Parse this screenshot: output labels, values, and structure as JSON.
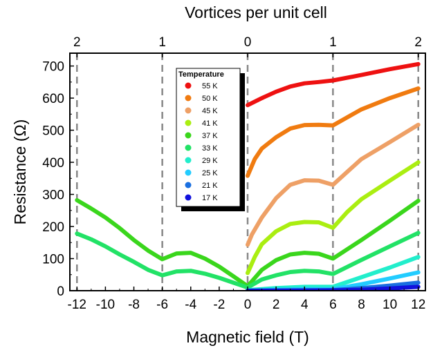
{
  "chart_data": {
    "type": "line",
    "xlabel": "Magnetic field (T)",
    "ylabel": "Resistance (Ω)",
    "top_xlabel": "Vortices per unit cell",
    "xlim": [
      -12.5,
      12.5
    ],
    "ylim": [
      0,
      740
    ],
    "xticks": [
      -12,
      -10,
      -8,
      -6,
      -4,
      -2,
      0,
      2,
      4,
      6,
      8,
      10,
      12
    ],
    "xtick_labels": [
      "-12",
      "-10",
      "-8",
      "-6",
      "-4",
      "-2",
      "0",
      "2",
      "4",
      "6",
      "8",
      "10",
      "12"
    ],
    "yticks": [
      0,
      100,
      200,
      300,
      400,
      500,
      600,
      700
    ],
    "ytick_labels": [
      "0",
      "100",
      "200",
      "300",
      "400",
      "500",
      "600",
      "700"
    ],
    "top_ticks": [
      {
        "field": -12,
        "label": "2"
      },
      {
        "field": -6,
        "label": "1"
      },
      {
        "field": 0,
        "label": "0"
      },
      {
        "field": 6,
        "label": "1"
      },
      {
        "field": 12,
        "label": "2"
      }
    ],
    "vlines": [
      -12,
      -6,
      0,
      6,
      12
    ],
    "legend": {
      "title": "Temperature",
      "placement": "top-center"
    },
    "series": [
      {
        "name": "55 K",
        "color": "#ee1111",
        "points": [
          [
            0,
            578
          ],
          [
            1,
            600
          ],
          [
            2,
            620
          ],
          [
            3,
            636
          ],
          [
            4,
            646
          ],
          [
            5,
            650
          ],
          [
            6,
            655
          ],
          [
            8,
            672
          ],
          [
            10,
            690
          ],
          [
            12,
            706
          ]
        ]
      },
      {
        "name": "50 K",
        "color": "#f07b10",
        "points": [
          [
            0,
            358
          ],
          [
            0.5,
            410
          ],
          [
            1,
            443
          ],
          [
            2,
            478
          ],
          [
            3,
            505
          ],
          [
            4,
            516
          ],
          [
            5,
            517
          ],
          [
            6,
            515
          ],
          [
            7,
            540
          ],
          [
            8,
            565
          ],
          [
            10,
            600
          ],
          [
            12,
            630
          ]
        ]
      },
      {
        "name": "45 K",
        "color": "#eea066",
        "points": [
          [
            0,
            143
          ],
          [
            0.3,
            175
          ],
          [
            1,
            228
          ],
          [
            2,
            288
          ],
          [
            3,
            330
          ],
          [
            4,
            344
          ],
          [
            5,
            343
          ],
          [
            6,
            330
          ],
          [
            7,
            370
          ],
          [
            8,
            410
          ],
          [
            10,
            463
          ],
          [
            12,
            517
          ]
        ]
      },
      {
        "name": "41 K",
        "color": "#aaee11",
        "points": [
          [
            0,
            55
          ],
          [
            0.5,
            105
          ],
          [
            1,
            145
          ],
          [
            2,
            185
          ],
          [
            3,
            208
          ],
          [
            4,
            214
          ],
          [
            5,
            213
          ],
          [
            6,
            196
          ],
          [
            7,
            245
          ],
          [
            8,
            285
          ],
          [
            10,
            343
          ],
          [
            12,
            400
          ]
        ]
      },
      {
        "name": "37 K",
        "color": "#3ad61c",
        "points": [
          [
            -12,
            282
          ],
          [
            -11,
            256
          ],
          [
            -10,
            228
          ],
          [
            -9,
            195
          ],
          [
            -8,
            158
          ],
          [
            -7,
            125
          ],
          [
            -6,
            98
          ],
          [
            -5,
            116
          ],
          [
            -4,
            118
          ],
          [
            -3,
            100
          ],
          [
            -2,
            75
          ],
          [
            -1,
            45
          ],
          [
            0,
            14
          ],
          [
            1,
            65
          ],
          [
            2,
            95
          ],
          [
            3,
            113
          ],
          [
            4,
            118
          ],
          [
            5,
            115
          ],
          [
            6,
            100
          ],
          [
            8,
            158
          ],
          [
            10,
            218
          ],
          [
            12,
            280
          ]
        ]
      },
      {
        "name": "33 K",
        "color": "#22e266",
        "points": [
          [
            -12,
            178
          ],
          [
            -11,
            160
          ],
          [
            -10,
            138
          ],
          [
            -9,
            113
          ],
          [
            -8,
            90
          ],
          [
            -7,
            65
          ],
          [
            -6,
            48
          ],
          [
            -5,
            60
          ],
          [
            -4,
            62
          ],
          [
            -3,
            53
          ],
          [
            -2,
            40
          ],
          [
            -1,
            25
          ],
          [
            0,
            10
          ],
          [
            1,
            35
          ],
          [
            2,
            48
          ],
          [
            3,
            58
          ],
          [
            4,
            62
          ],
          [
            5,
            60
          ],
          [
            6,
            52
          ],
          [
            8,
            96
          ],
          [
            10,
            138
          ],
          [
            12,
            180
          ]
        ]
      },
      {
        "name": "29 K",
        "color": "#22eecc",
        "points": [
          [
            0,
            2
          ],
          [
            2,
            8
          ],
          [
            4,
            12
          ],
          [
            6,
            12
          ],
          [
            8,
            42
          ],
          [
            10,
            72
          ],
          [
            12,
            105
          ]
        ]
      },
      {
        "name": "25 K",
        "color": "#22ccff",
        "points": [
          [
            0,
            0
          ],
          [
            2,
            3
          ],
          [
            4,
            5
          ],
          [
            6,
            5
          ],
          [
            8,
            20
          ],
          [
            10,
            38
          ],
          [
            12,
            57
          ]
        ]
      },
      {
        "name": "21 K",
        "color": "#1a6fe0",
        "points": [
          [
            0,
            0
          ],
          [
            2,
            1
          ],
          [
            4,
            2
          ],
          [
            6,
            2
          ],
          [
            8,
            8
          ],
          [
            10,
            16
          ],
          [
            12,
            25
          ]
        ]
      },
      {
        "name": "17 K",
        "color": "#1111dd",
        "points": [
          [
            0,
            0
          ],
          [
            4,
            0
          ],
          [
            6,
            1
          ],
          [
            8,
            3
          ],
          [
            10,
            7
          ],
          [
            12,
            12
          ]
        ]
      }
    ]
  }
}
